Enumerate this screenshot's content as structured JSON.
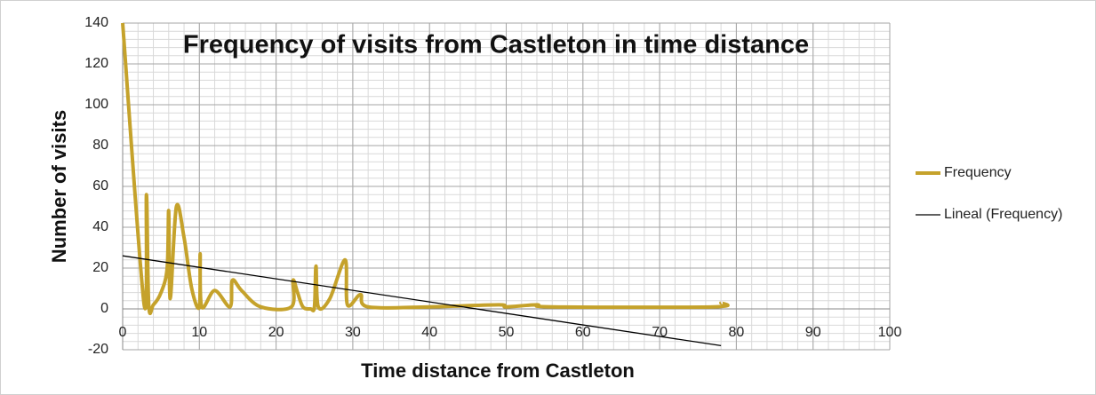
{
  "chart_data": {
    "type": "line",
    "title": "Frequency of visits from Castleton in time distance",
    "x_label": "Time distance from Castleton",
    "y_label": "Number of visits",
    "xlim": [
      0,
      100
    ],
    "xticks": [
      0,
      10,
      20,
      30,
      40,
      50,
      60,
      70,
      80,
      90,
      100
    ],
    "ylim": [
      -20,
      140
    ],
    "yticks": [
      -20,
      0,
      20,
      40,
      60,
      80,
      100,
      120,
      140
    ],
    "grid": true,
    "minor_grid": {
      "x": 2,
      "y": 4
    },
    "smooth": true,
    "legend": "right",
    "series": [
      {
        "name": "Frequency",
        "color": "#c5a22b",
        "line_width": 4,
        "x": [
          0,
          2.8,
          3.1,
          3.4,
          4,
          5,
          5.8,
          6,
          6.2,
          7,
          8,
          9,
          10,
          10.1,
          10.3,
          12,
          14,
          14.3,
          15.5,
          18,
          22,
          22.2,
          22.8,
          23.5,
          24.5,
          25,
          25.2,
          25.5,
          27,
          29,
          29.3,
          31,
          32,
          40,
          49,
          50,
          54,
          56,
          77,
          78
        ],
        "values": [
          140,
          2,
          56,
          2,
          2,
          8,
          20,
          48,
          5,
          50,
          35,
          10,
          1,
          27,
          1,
          9,
          1,
          14,
          9,
          1,
          1,
          14,
          8,
          1,
          0,
          1,
          21,
          1,
          5,
          24,
          2,
          7,
          1,
          1,
          2,
          1,
          2,
          1,
          1,
          3
        ]
      },
      {
        "name": "Lineal (Frequency)",
        "color": "#000000",
        "line_width": 1.3,
        "x": [
          0,
          78
        ],
        "values": [
          26,
          -18
        ]
      }
    ]
  }
}
